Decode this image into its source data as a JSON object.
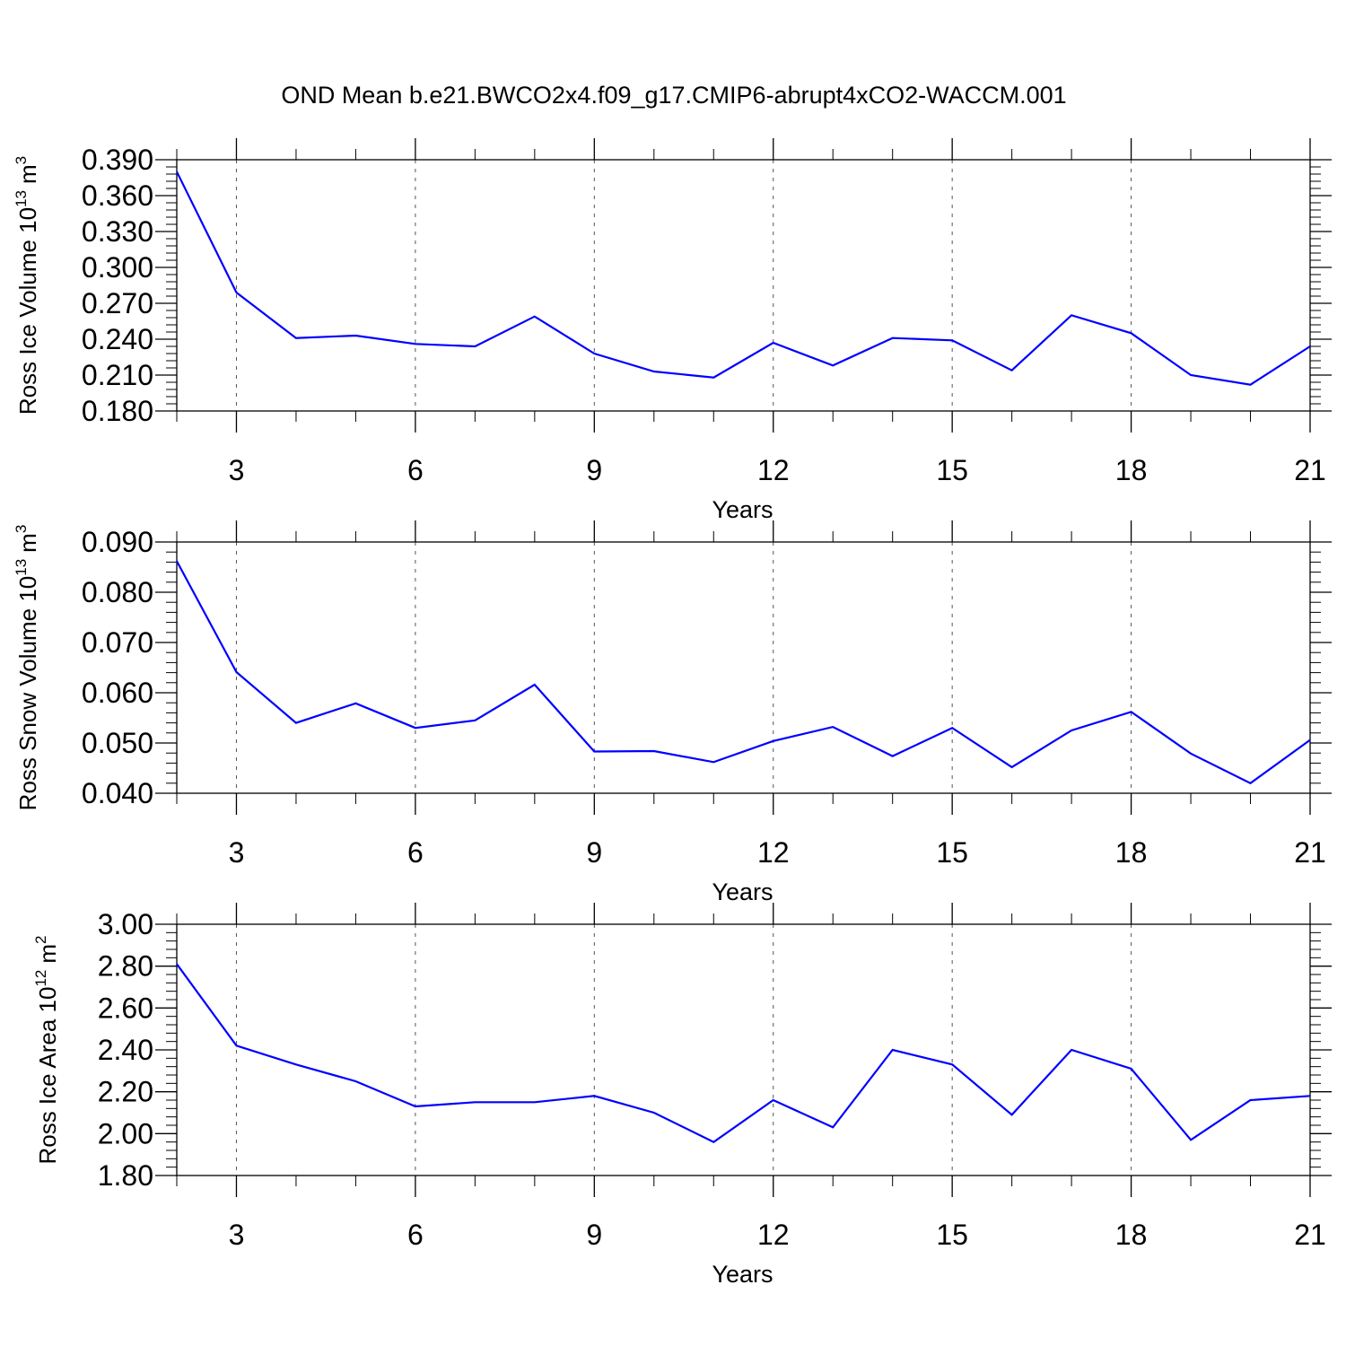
{
  "page": {
    "title": "OND Mean b.e21.BWCO2x4.f09_g17.CMIP6-abrupt4xCO2-WACCM.001"
  },
  "style": {
    "line_color": "#0000ff",
    "axis_color": "#000000",
    "grid_color": "#555555",
    "grid_style": "dashed vertical at major x ticks"
  },
  "chart_data": [
    {
      "type": "line",
      "title": "",
      "xlabel": "Years",
      "ylabel_main": "Ross Ice Volume 10",
      "ylabel_exp": "13",
      "ylabel_unit": "m",
      "ylabel_unit_exp": "3",
      "xlim": [
        2,
        21
      ],
      "ylim": [
        0.18,
        0.39
      ],
      "xticks": [
        3,
        6,
        9,
        12,
        15,
        18,
        21
      ],
      "yticks": [
        0.18,
        0.21,
        0.24,
        0.27,
        0.3,
        0.33,
        0.36,
        0.39
      ],
      "ytick_labels": [
        "0.180",
        "0.210",
        "0.240",
        "0.270",
        "0.300",
        "0.330",
        "0.360",
        "0.390"
      ],
      "grid": "x",
      "series": [
        {
          "x": [
            2,
            3,
            4,
            5,
            6,
            7,
            8,
            9,
            10,
            11,
            12,
            13,
            14,
            15,
            16,
            17,
            18,
            19,
            20,
            21
          ],
          "values": [
            0.38,
            0.279,
            0.241,
            0.243,
            0.236,
            0.234,
            0.259,
            0.228,
            0.213,
            0.208,
            0.237,
            0.218,
            0.241,
            0.239,
            0.214,
            0.26,
            0.245,
            0.21,
            0.202,
            0.234
          ]
        }
      ]
    },
    {
      "type": "line",
      "title": "",
      "xlabel": "Years",
      "ylabel_main": "Ross Snow Volume 10",
      "ylabel_exp": "13",
      "ylabel_unit": "m",
      "ylabel_unit_exp": "3",
      "xlim": [
        2,
        21
      ],
      "ylim": [
        0.04,
        0.09
      ],
      "xticks": [
        3,
        6,
        9,
        12,
        15,
        18,
        21
      ],
      "yticks": [
        0.04,
        0.05,
        0.06,
        0.07,
        0.08,
        0.09
      ],
      "ytick_labels": [
        "0.040",
        "0.050",
        "0.060",
        "0.070",
        "0.080",
        "0.090"
      ],
      "grid": "x",
      "series": [
        {
          "x": [
            2,
            3,
            4,
            5,
            6,
            7,
            8,
            9,
            10,
            11,
            12,
            13,
            14,
            15,
            16,
            17,
            18,
            19,
            20,
            21
          ],
          "values": [
            0.0862,
            0.0641,
            0.054,
            0.0579,
            0.053,
            0.0545,
            0.0616,
            0.0483,
            0.0484,
            0.0462,
            0.0504,
            0.0532,
            0.0474,
            0.053,
            0.0452,
            0.0525,
            0.0562,
            0.0479,
            0.042,
            0.0506
          ]
        }
      ]
    },
    {
      "type": "line",
      "title": "",
      "xlabel": "Years",
      "ylabel_main": "Ross Ice Area 10",
      "ylabel_exp": "12",
      "ylabel_unit": "m",
      "ylabel_unit_exp": "2",
      "xlim": [
        2,
        21
      ],
      "ylim": [
        1.8,
        3.0
      ],
      "xticks": [
        3,
        6,
        9,
        12,
        15,
        18,
        21
      ],
      "yticks": [
        1.8,
        2.0,
        2.2,
        2.4,
        2.6,
        2.8,
        3.0
      ],
      "ytick_labels": [
        "1.80",
        "2.00",
        "2.20",
        "2.40",
        "2.60",
        "2.80",
        "3.00"
      ],
      "grid": "x",
      "series": [
        {
          "x": [
            2,
            3,
            4,
            5,
            6,
            7,
            8,
            9,
            10,
            11,
            12,
            13,
            14,
            15,
            16,
            17,
            18,
            19,
            20,
            21
          ],
          "values": [
            2.81,
            2.42,
            2.33,
            2.25,
            2.13,
            2.15,
            2.15,
            2.18,
            2.1,
            1.96,
            2.16,
            2.03,
            2.4,
            2.33,
            2.09,
            2.4,
            2.31,
            1.97,
            2.16,
            2.18
          ]
        }
      ]
    }
  ]
}
